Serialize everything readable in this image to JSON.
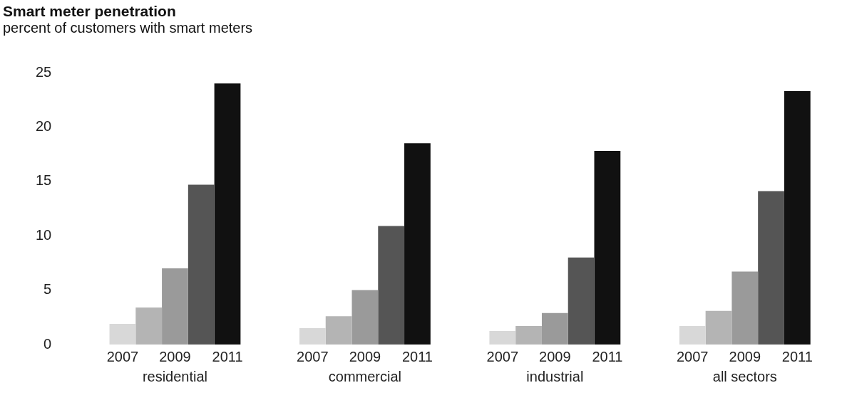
{
  "chart_data": {
    "type": "bar",
    "title": "Smart meter  penetration",
    "subtitle": "percent of customers with smart meters",
    "categories": [
      "residential",
      "commercial",
      "industrial",
      "all sectors"
    ],
    "series": [
      {
        "name": "2007",
        "color": "#d8d8d8",
        "values": [
          1.9,
          1.5,
          1.25,
          1.7
        ]
      },
      {
        "color": "#b4b4b4",
        "values": [
          3.4,
          2.6,
          1.7,
          3.1
        ]
      },
      {
        "name": "2009",
        "color": "#9a9a9a",
        "values": [
          7.0,
          5.0,
          2.9,
          6.7
        ]
      },
      {
        "color": "#555555",
        "values": [
          14.7,
          10.9,
          8.0,
          14.1
        ]
      },
      {
        "name": "2011",
        "color": "#111111",
        "values": [
          24.0,
          18.5,
          17.8,
          23.3
        ]
      }
    ],
    "ylim": [
      0,
      25
    ],
    "yticks": [
      0,
      5,
      10,
      15,
      20,
      25
    ],
    "grid": false,
    "legend": false
  }
}
